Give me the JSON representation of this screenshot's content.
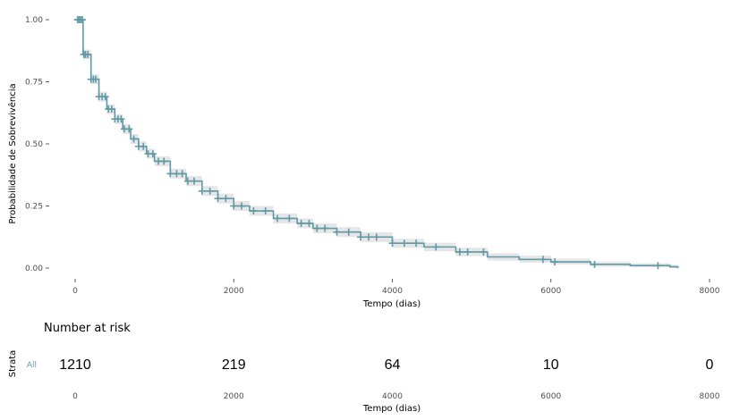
{
  "chart_data": [
    {
      "type": "line",
      "subtype": "kaplan-meier",
      "title": "",
      "xlabel": "Tempo (dias)",
      "ylabel": "Probabilidade de Sobrevivência",
      "xlim": [
        0,
        8000
      ],
      "ylim": [
        0,
        1
      ],
      "xticks": [
        "0",
        "2000",
        "4000",
        "6000",
        "8000"
      ],
      "yticks": [
        "0.00",
        "0.25",
        "0.50",
        "0.75",
        "1.00"
      ],
      "grid": false,
      "legend": "none",
      "series": [
        {
          "name": "All",
          "color": "#5f9aa6",
          "ci_color": "#e5e5e5",
          "x": [
            0,
            100,
            200,
            300,
            400,
            500,
            600,
            700,
            800,
            900,
            1000,
            1200,
            1400,
            1600,
            1800,
            2000,
            2200,
            2500,
            2800,
            3000,
            3300,
            3600,
            4000,
            4400,
            4800,
            5200,
            5600,
            6000,
            6500,
            7000,
            7500,
            7600
          ],
          "y": [
            1.0,
            0.86,
            0.76,
            0.69,
            0.64,
            0.6,
            0.56,
            0.52,
            0.49,
            0.46,
            0.43,
            0.38,
            0.35,
            0.31,
            0.28,
            0.25,
            0.23,
            0.2,
            0.18,
            0.16,
            0.145,
            0.125,
            0.1,
            0.085,
            0.065,
            0.045,
            0.035,
            0.025,
            0.015,
            0.01,
            0.005,
            0.0
          ],
          "ci_lower": [
            1.0,
            0.84,
            0.74,
            0.67,
            0.62,
            0.58,
            0.54,
            0.5,
            0.47,
            0.44,
            0.41,
            0.36,
            0.33,
            0.29,
            0.26,
            0.23,
            0.21,
            0.18,
            0.16,
            0.14,
            0.125,
            0.105,
            0.082,
            0.068,
            0.048,
            0.03,
            0.022,
            0.014,
            0.006,
            0.003,
            0.0,
            0.0
          ],
          "ci_upper": [
            1.0,
            0.88,
            0.78,
            0.71,
            0.66,
            0.62,
            0.58,
            0.54,
            0.51,
            0.48,
            0.45,
            0.4,
            0.37,
            0.33,
            0.3,
            0.27,
            0.25,
            0.22,
            0.2,
            0.18,
            0.165,
            0.145,
            0.118,
            0.102,
            0.082,
            0.06,
            0.05,
            0.038,
            0.026,
            0.02,
            0.014,
            0.01
          ],
          "censor_x": [
            30,
            50,
            70,
            90,
            110,
            130,
            160,
            200,
            230,
            260,
            300,
            340,
            380,
            420,
            460,
            500,
            540,
            580,
            620,
            680,
            740,
            800,
            860,
            920,
            980,
            1050,
            1120,
            1200,
            1280,
            1350,
            1420,
            1500,
            1600,
            1700,
            1800,
            1900,
            2000,
            2100,
            2250,
            2400,
            2550,
            2700,
            2850,
            2950,
            3050,
            3150,
            3300,
            3450,
            3600,
            3700,
            3800,
            4000,
            4150,
            4300,
            4550,
            4850,
            4950,
            5150,
            5900,
            6050,
            6550,
            7350
          ]
        }
      ]
    },
    {
      "type": "table",
      "title": "Number at risk",
      "row_axis_label": "Strata",
      "rows": [
        {
          "name": "All",
          "color": "#5f9aa6",
          "values": [
            "1210",
            "219",
            "64",
            "10",
            "0"
          ]
        }
      ],
      "x": [
        0,
        2000,
        4000,
        6000,
        8000
      ],
      "xticks": [
        "0",
        "2000",
        "4000",
        "6000",
        "8000"
      ],
      "xlabel": "Tempo (dias)"
    }
  ]
}
